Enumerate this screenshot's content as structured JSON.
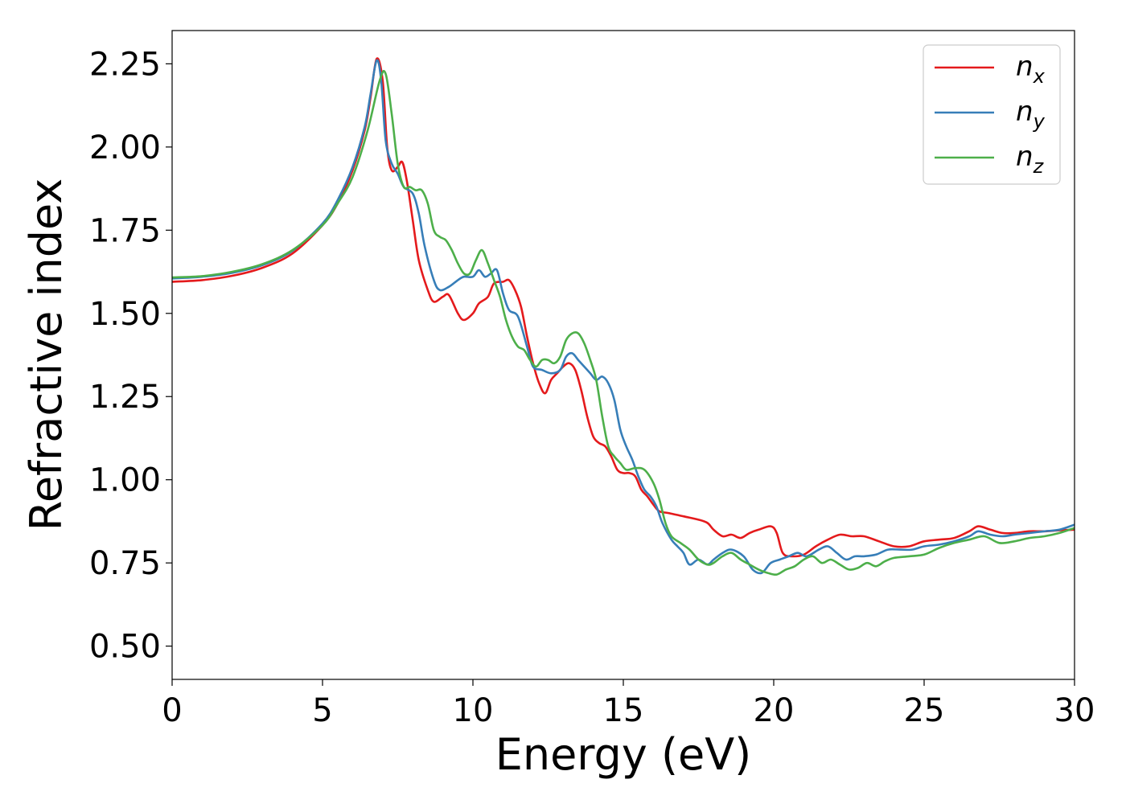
{
  "chart_data": {
    "type": "line",
    "xlabel": "Energy (eV)",
    "ylabel": "Refractive index",
    "xlim": [
      0,
      30
    ],
    "ylim": [
      0.4,
      2.35
    ],
    "xticks": [
      0,
      5,
      10,
      15,
      20,
      25,
      30
    ],
    "xtick_labels": [
      "0",
      "5",
      "10",
      "15",
      "20",
      "25",
      "30"
    ],
    "yticks": [
      0.5,
      0.75,
      1.0,
      1.25,
      1.5,
      1.75,
      2.0,
      2.25
    ],
    "ytick_labels": [
      "0.50",
      "0.75",
      "1.00",
      "1.25",
      "1.50",
      "1.75",
      "2.00",
      "2.25"
    ],
    "grid": false,
    "legend_position": "top-right",
    "series": [
      {
        "name": "n",
        "subscript": "x",
        "color": "#e41a1c",
        "points": [
          [
            0,
            1.595
          ],
          [
            1,
            1.6
          ],
          [
            2,
            1.613
          ],
          [
            3,
            1.637
          ],
          [
            4,
            1.68
          ],
          [
            5,
            1.765
          ],
          [
            5.5,
            1.83
          ],
          [
            6,
            1.93
          ],
          [
            6.4,
            2.05
          ],
          [
            6.6,
            2.15
          ],
          [
            6.8,
            2.265
          ],
          [
            7.0,
            2.2
          ],
          [
            7.15,
            2.0
          ],
          [
            7.3,
            1.93
          ],
          [
            7.5,
            1.94
          ],
          [
            7.65,
            1.955
          ],
          [
            7.8,
            1.9
          ],
          [
            8.0,
            1.78
          ],
          [
            8.2,
            1.66
          ],
          [
            8.5,
            1.57
          ],
          [
            8.7,
            1.535
          ],
          [
            9.0,
            1.55
          ],
          [
            9.2,
            1.555
          ],
          [
            9.5,
            1.5
          ],
          [
            9.7,
            1.48
          ],
          [
            10.0,
            1.5
          ],
          [
            10.2,
            1.53
          ],
          [
            10.5,
            1.55
          ],
          [
            10.7,
            1.59
          ],
          [
            11.0,
            1.595
          ],
          [
            11.2,
            1.6
          ],
          [
            11.4,
            1.57
          ],
          [
            11.6,
            1.52
          ],
          [
            11.8,
            1.43
          ],
          [
            12.0,
            1.35
          ],
          [
            12.2,
            1.29
          ],
          [
            12.4,
            1.26
          ],
          [
            12.6,
            1.3
          ],
          [
            12.8,
            1.32
          ],
          [
            13.0,
            1.34
          ],
          [
            13.2,
            1.35
          ],
          [
            13.4,
            1.33
          ],
          [
            13.6,
            1.27
          ],
          [
            13.8,
            1.19
          ],
          [
            14.0,
            1.13
          ],
          [
            14.2,
            1.11
          ],
          [
            14.4,
            1.1
          ],
          [
            14.6,
            1.07
          ],
          [
            14.8,
            1.03
          ],
          [
            15.0,
            1.02
          ],
          [
            15.2,
            1.02
          ],
          [
            15.4,
            1.01
          ],
          [
            15.6,
            0.97
          ],
          [
            15.8,
            0.95
          ],
          [
            16.0,
            0.925
          ],
          [
            16.2,
            0.905
          ],
          [
            16.5,
            0.9
          ],
          [
            17.0,
            0.89
          ],
          [
            17.5,
            0.88
          ],
          [
            17.8,
            0.87
          ],
          [
            18.0,
            0.85
          ],
          [
            18.3,
            0.83
          ],
          [
            18.6,
            0.835
          ],
          [
            18.9,
            0.825
          ],
          [
            19.2,
            0.84
          ],
          [
            19.5,
            0.85
          ],
          [
            19.9,
            0.86
          ],
          [
            20.1,
            0.84
          ],
          [
            20.3,
            0.78
          ],
          [
            20.6,
            0.77
          ],
          [
            21.0,
            0.775
          ],
          [
            21.4,
            0.8
          ],
          [
            21.8,
            0.82
          ],
          [
            22.2,
            0.835
          ],
          [
            22.6,
            0.83
          ],
          [
            23.0,
            0.83
          ],
          [
            23.5,
            0.815
          ],
          [
            24.0,
            0.8
          ],
          [
            24.5,
            0.8
          ],
          [
            25.0,
            0.815
          ],
          [
            25.5,
            0.82
          ],
          [
            26.0,
            0.825
          ],
          [
            26.5,
            0.845
          ],
          [
            26.8,
            0.86
          ],
          [
            27.2,
            0.85
          ],
          [
            27.6,
            0.84
          ],
          [
            28.0,
            0.84
          ],
          [
            28.5,
            0.845
          ],
          [
            29.0,
            0.845
          ],
          [
            29.5,
            0.848
          ],
          [
            30,
            0.85
          ]
        ]
      },
      {
        "name": "n",
        "subscript": "y",
        "color": "#377eb8",
        "points": [
          [
            0,
            1.605
          ],
          [
            1,
            1.61
          ],
          [
            2,
            1.622
          ],
          [
            3,
            1.645
          ],
          [
            4,
            1.688
          ],
          [
            5,
            1.77
          ],
          [
            5.5,
            1.84
          ],
          [
            6,
            1.94
          ],
          [
            6.4,
            2.06
          ],
          [
            6.6,
            2.16
          ],
          [
            6.8,
            2.26
          ],
          [
            6.95,
            2.2
          ],
          [
            7.1,
            2.02
          ],
          [
            7.3,
            1.95
          ],
          [
            7.5,
            1.92
          ],
          [
            7.7,
            1.88
          ],
          [
            8.0,
            1.86
          ],
          [
            8.2,
            1.8
          ],
          [
            8.4,
            1.7
          ],
          [
            8.7,
            1.6
          ],
          [
            8.9,
            1.57
          ],
          [
            9.2,
            1.58
          ],
          [
            9.5,
            1.6
          ],
          [
            9.7,
            1.61
          ],
          [
            10.0,
            1.61
          ],
          [
            10.2,
            1.63
          ],
          [
            10.4,
            1.61
          ],
          [
            10.6,
            1.62
          ],
          [
            10.8,
            1.63
          ],
          [
            11.0,
            1.56
          ],
          [
            11.2,
            1.51
          ],
          [
            11.5,
            1.49
          ],
          [
            11.8,
            1.4
          ],
          [
            12.0,
            1.34
          ],
          [
            12.3,
            1.33
          ],
          [
            12.6,
            1.32
          ],
          [
            12.9,
            1.33
          ],
          [
            13.1,
            1.37
          ],
          [
            13.3,
            1.38
          ],
          [
            13.5,
            1.36
          ],
          [
            13.7,
            1.34
          ],
          [
            13.9,
            1.32
          ],
          [
            14.1,
            1.3
          ],
          [
            14.3,
            1.31
          ],
          [
            14.5,
            1.29
          ],
          [
            14.7,
            1.24
          ],
          [
            14.9,
            1.15
          ],
          [
            15.1,
            1.1
          ],
          [
            15.3,
            1.06
          ],
          [
            15.5,
            1.01
          ],
          [
            15.7,
            0.97
          ],
          [
            15.9,
            0.95
          ],
          [
            16.1,
            0.92
          ],
          [
            16.3,
            0.87
          ],
          [
            16.6,
            0.82
          ],
          [
            16.8,
            0.8
          ],
          [
            17.0,
            0.78
          ],
          [
            17.2,
            0.745
          ],
          [
            17.5,
            0.76
          ],
          [
            17.8,
            0.745
          ],
          [
            18.0,
            0.76
          ],
          [
            18.3,
            0.78
          ],
          [
            18.6,
            0.79
          ],
          [
            19.0,
            0.77
          ],
          [
            19.3,
            0.73
          ],
          [
            19.6,
            0.72
          ],
          [
            19.9,
            0.75
          ],
          [
            20.2,
            0.76
          ],
          [
            20.5,
            0.77
          ],
          [
            20.8,
            0.78
          ],
          [
            21.1,
            0.77
          ],
          [
            21.5,
            0.79
          ],
          [
            21.8,
            0.8
          ],
          [
            22.1,
            0.78
          ],
          [
            22.4,
            0.76
          ],
          [
            22.7,
            0.77
          ],
          [
            23.0,
            0.77
          ],
          [
            23.4,
            0.775
          ],
          [
            23.8,
            0.79
          ],
          [
            24.2,
            0.79
          ],
          [
            24.6,
            0.79
          ],
          [
            25.0,
            0.8
          ],
          [
            25.5,
            0.805
          ],
          [
            26.0,
            0.815
          ],
          [
            26.5,
            0.83
          ],
          [
            26.8,
            0.845
          ],
          [
            27.2,
            0.835
          ],
          [
            27.6,
            0.83
          ],
          [
            28.0,
            0.835
          ],
          [
            28.5,
            0.84
          ],
          [
            29.0,
            0.845
          ],
          [
            29.5,
            0.85
          ],
          [
            30,
            0.865
          ]
        ]
      },
      {
        "name": "n",
        "subscript": "z",
        "color": "#4daf4a",
        "points": [
          [
            0,
            1.608
          ],
          [
            1,
            1.612
          ],
          [
            2,
            1.625
          ],
          [
            3,
            1.648
          ],
          [
            4,
            1.69
          ],
          [
            5,
            1.765
          ],
          [
            5.5,
            1.83
          ],
          [
            6,
            1.91
          ],
          [
            6.5,
            2.05
          ],
          [
            6.9,
            2.2
          ],
          [
            7.1,
            2.22
          ],
          [
            7.3,
            2.1
          ],
          [
            7.5,
            1.95
          ],
          [
            7.7,
            1.88
          ],
          [
            7.9,
            1.88
          ],
          [
            8.1,
            1.87
          ],
          [
            8.3,
            1.87
          ],
          [
            8.5,
            1.83
          ],
          [
            8.7,
            1.75
          ],
          [
            8.9,
            1.73
          ],
          [
            9.1,
            1.72
          ],
          [
            9.3,
            1.69
          ],
          [
            9.5,
            1.65
          ],
          [
            9.7,
            1.62
          ],
          [
            9.9,
            1.62
          ],
          [
            10.1,
            1.66
          ],
          [
            10.3,
            1.69
          ],
          [
            10.5,
            1.65
          ],
          [
            10.7,
            1.6
          ],
          [
            10.9,
            1.55
          ],
          [
            11.1,
            1.48
          ],
          [
            11.3,
            1.43
          ],
          [
            11.5,
            1.4
          ],
          [
            11.7,
            1.39
          ],
          [
            11.9,
            1.36
          ],
          [
            12.1,
            1.34
          ],
          [
            12.3,
            1.36
          ],
          [
            12.5,
            1.36
          ],
          [
            12.7,
            1.35
          ],
          [
            12.9,
            1.37
          ],
          [
            13.1,
            1.42
          ],
          [
            13.3,
            1.44
          ],
          [
            13.5,
            1.44
          ],
          [
            13.7,
            1.41
          ],
          [
            13.9,
            1.36
          ],
          [
            14.1,
            1.3
          ],
          [
            14.3,
            1.19
          ],
          [
            14.5,
            1.1
          ],
          [
            14.7,
            1.07
          ],
          [
            14.9,
            1.05
          ],
          [
            15.1,
            1.03
          ],
          [
            15.4,
            1.035
          ],
          [
            15.7,
            1.03
          ],
          [
            16.0,
            0.99
          ],
          [
            16.2,
            0.94
          ],
          [
            16.4,
            0.87
          ],
          [
            16.6,
            0.83
          ],
          [
            16.9,
            0.81
          ],
          [
            17.2,
            0.79
          ],
          [
            17.5,
            0.76
          ],
          [
            17.8,
            0.745
          ],
          [
            18.0,
            0.75
          ],
          [
            18.3,
            0.77
          ],
          [
            18.6,
            0.78
          ],
          [
            18.9,
            0.76
          ],
          [
            19.2,
            0.745
          ],
          [
            19.5,
            0.73
          ],
          [
            19.8,
            0.72
          ],
          [
            20.1,
            0.715
          ],
          [
            20.4,
            0.73
          ],
          [
            20.7,
            0.74
          ],
          [
            21.0,
            0.76
          ],
          [
            21.3,
            0.77
          ],
          [
            21.6,
            0.75
          ],
          [
            21.9,
            0.76
          ],
          [
            22.2,
            0.745
          ],
          [
            22.5,
            0.73
          ],
          [
            22.8,
            0.735
          ],
          [
            23.1,
            0.75
          ],
          [
            23.4,
            0.74
          ],
          [
            23.7,
            0.755
          ],
          [
            24.0,
            0.765
          ],
          [
            24.5,
            0.77
          ],
          [
            25.0,
            0.775
          ],
          [
            25.5,
            0.795
          ],
          [
            26.0,
            0.81
          ],
          [
            26.5,
            0.82
          ],
          [
            27.0,
            0.83
          ],
          [
            27.5,
            0.81
          ],
          [
            28.0,
            0.815
          ],
          [
            28.5,
            0.825
          ],
          [
            29.0,
            0.83
          ],
          [
            29.5,
            0.84
          ],
          [
            30,
            0.855
          ]
        ]
      }
    ]
  }
}
